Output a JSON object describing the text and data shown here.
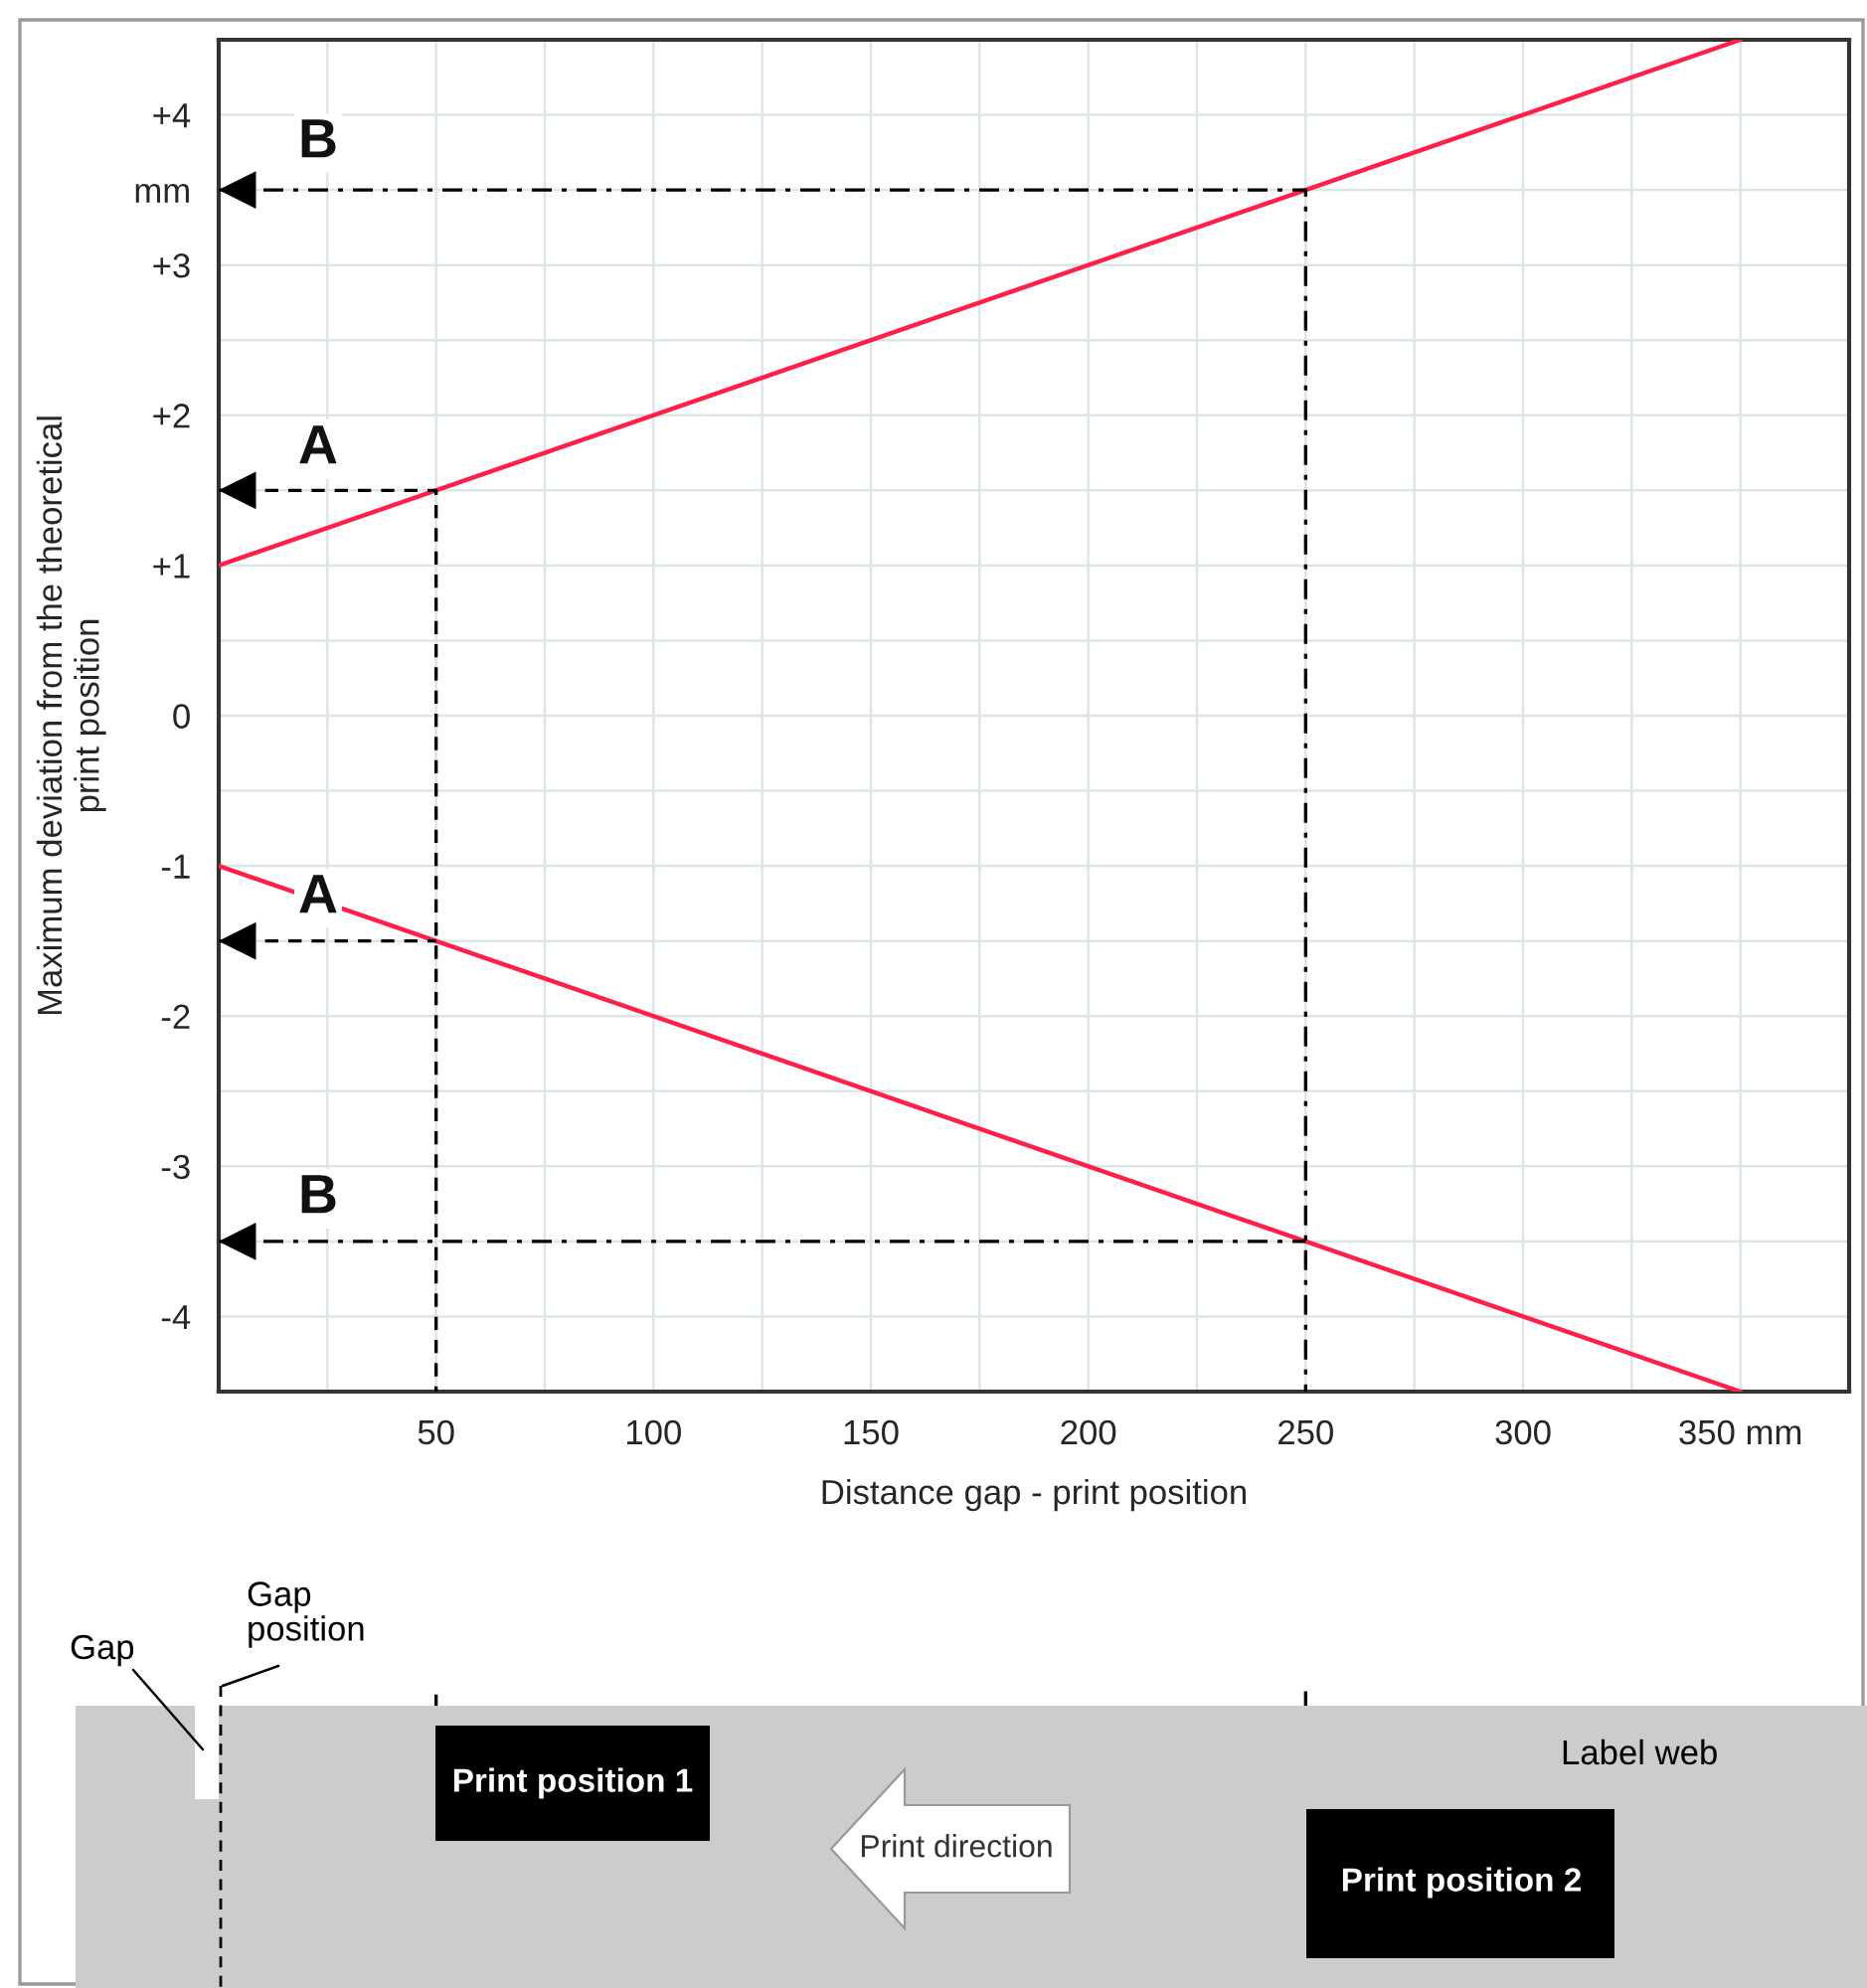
{
  "chart_data": {
    "type": "line",
    "xlabel": "Distance gap - print position",
    "ylabel": "Maximum deviation from the theoretical\nprint position",
    "xlim": [
      0,
      375
    ],
    "ylim": [
      -4.5,
      4.5
    ],
    "xticks": [
      {
        "value": 25,
        "label": null
      },
      50,
      {
        "value": 75,
        "label": null
      },
      100,
      {
        "value": 125,
        "label": null
      },
      150,
      {
        "value": 175,
        "label": null
      },
      200,
      {
        "value": 225,
        "label": null
      },
      250,
      {
        "value": 275,
        "label": null
      },
      300,
      {
        "value": 325,
        "label": null
      },
      {
        "value": 350,
        "label": "350 mm"
      }
    ],
    "yticks": [
      {
        "value": -4,
        "label": "-4"
      },
      {
        "value": -3.5,
        "label": null
      },
      {
        "value": -3,
        "label": "-3"
      },
      {
        "value": -2.5,
        "label": null
      },
      {
        "value": -2,
        "label": "-2"
      },
      {
        "value": -1.5,
        "label": null
      },
      {
        "value": -1,
        "label": "-1"
      },
      {
        "value": -0.5,
        "label": null
      },
      0,
      {
        "value": 0.5,
        "label": null
      },
      {
        "value": 1,
        "label": "+1"
      },
      {
        "value": 1.5,
        "label": null
      },
      {
        "value": 2,
        "label": "+2"
      },
      {
        "value": 2.5,
        "label": null
      },
      {
        "value": 3,
        "label": "+3"
      },
      {
        "value": 3.5,
        "label": "mm"
      },
      {
        "value": 4,
        "label": "+4"
      }
    ],
    "grid": true,
    "series": [
      {
        "color": "#ff1f4b",
        "x": [
          0,
          350
        ],
        "values": [
          1,
          4.5
        ]
      },
      {
        "color": "#ff1f4b",
        "x": [
          0,
          350
        ],
        "values": [
          -1,
          -4.5
        ]
      },
      {
        "color": "#000000",
        "x": [
          0,
          50,
          50
        ],
        "values": [
          1.5,
          1.5,
          -4.5
        ],
        "line_style": "dashed"
      },
      {
        "color": "#000000",
        "x": [
          0,
          50
        ],
        "values": [
          -1.5,
          -1.5
        ],
        "line_style": "dashed"
      },
      {
        "color": "#000000",
        "x": [
          0,
          250,
          250
        ],
        "values": [
          3.5,
          3.5,
          -4.5
        ],
        "line_style": "dashdot"
      },
      {
        "color": "#000000",
        "x": [
          0,
          250
        ],
        "values": [
          -3.5,
          -3.5
        ],
        "line_style": "dashdot"
      }
    ],
    "annotations": [
      "B",
      "A",
      "A",
      "B",
      "Gap",
      "Gap\nposition",
      "Print position 1",
      "Print direction",
      "Print position 2",
      "Label web"
    ]
  }
}
